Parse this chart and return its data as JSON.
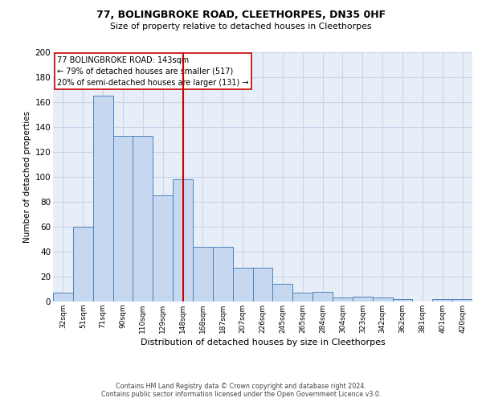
{
  "title": "77, BOLINGBROKE ROAD, CLEETHORPES, DN35 0HF",
  "subtitle": "Size of property relative to detached houses in Cleethorpes",
  "xlabel": "Distribution of detached houses by size in Cleethorpes",
  "ylabel": "Number of detached properties",
  "bin_labels": [
    "32sqm",
    "51sqm",
    "71sqm",
    "90sqm",
    "110sqm",
    "129sqm",
    "148sqm",
    "168sqm",
    "187sqm",
    "207sqm",
    "226sqm",
    "245sqm",
    "265sqm",
    "284sqm",
    "304sqm",
    "323sqm",
    "342sqm",
    "362sqm",
    "381sqm",
    "401sqm",
    "420sqm"
  ],
  "bar_values": [
    7,
    60,
    165,
    133,
    133,
    85,
    98,
    44,
    44,
    27,
    27,
    14,
    7,
    8,
    3,
    4,
    3,
    2,
    0,
    2,
    2
  ],
  "bar_color": "#c5d8f0",
  "bar_edge_color": "#4f81bd",
  "property_bin_index": 6,
  "vline_color": "#cc0000",
  "annotation_text": "77 BOLINGBROKE ROAD: 143sqm\n← 79% of detached houses are smaller (517)\n20% of semi-detached houses are larger (131) →",
  "annotation_box_color": "#ffffff",
  "annotation_box_edge_color": "#cc0000",
  "ylim": [
    0,
    200
  ],
  "yticks": [
    0,
    20,
    40,
    60,
    80,
    100,
    120,
    140,
    160,
    180,
    200
  ],
  "grid_color": "#c8d4e8",
  "background_color": "#e8eef8",
  "footnote": "Contains HM Land Registry data © Crown copyright and database right 2024.\nContains public sector information licensed under the Open Government Licence v3.0."
}
